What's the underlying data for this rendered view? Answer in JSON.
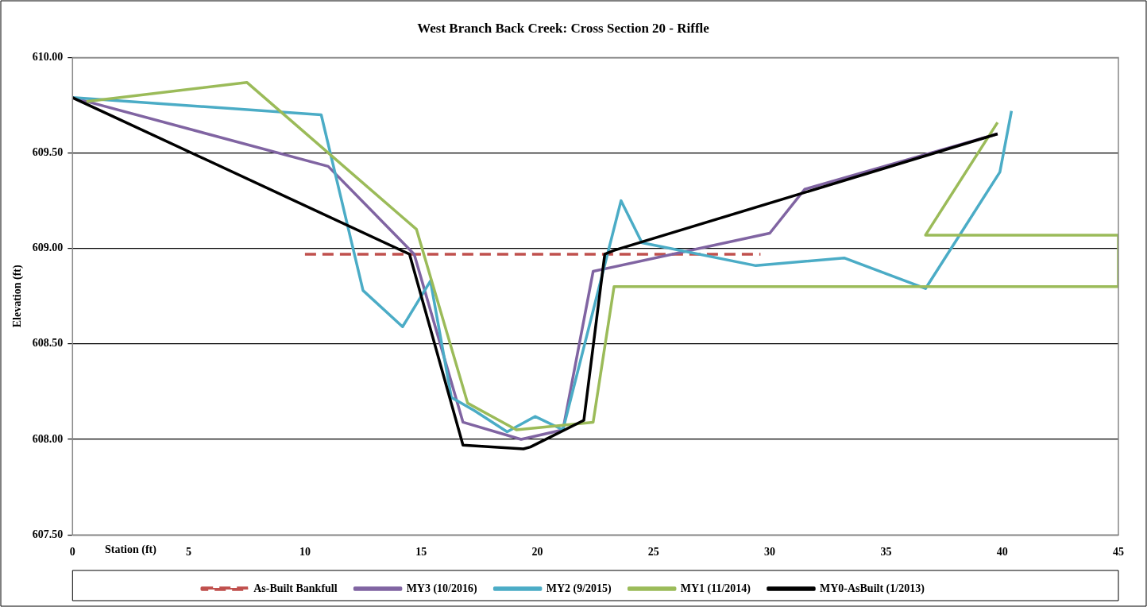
{
  "chart_data": {
    "type": "line",
    "title": "West Branch Back Creek: Cross Section 20 - Riffle",
    "xlabel": "Station (ft)",
    "ylabel": "Elevation (ft)",
    "xlim": [
      0,
      45
    ],
    "xticks": [
      0,
      5,
      10,
      15,
      20,
      25,
      30,
      35,
      40,
      45
    ],
    "ylim": [
      607.5,
      610
    ],
    "yticks": [
      {
        "value": 607.5,
        "label": "607.50"
      },
      {
        "value": 608,
        "label": "608.00"
      },
      {
        "value": 608.5,
        "label": "608.50"
      },
      {
        "value": 609,
        "label": "609.00"
      },
      {
        "value": 609.5,
        "label": "609.50"
      },
      {
        "value": 610,
        "label": "610.00"
      }
    ],
    "grid": "y",
    "legend": "bottom",
    "marker": "none",
    "series": [
      {
        "name": "As-Built Bankfull",
        "color": "#c0504d",
        "line_style": "dashed",
        "x": [
          10,
          29.6
        ],
        "values": [
          608.97,
          608.97
        ]
      },
      {
        "name": "MY3 (10/2016)",
        "color": "#8064a2",
        "x": [
          0,
          11.0,
          14.7,
          16.8,
          19.3,
          21.1,
          22.4,
          30.0,
          31.5,
          39.8
        ],
        "values": [
          609.79,
          609.43,
          608.97,
          608.09,
          608.0,
          608.05,
          608.88,
          609.08,
          609.31,
          609.6
        ]
      },
      {
        "name": "MY2 (9/2015)",
        "color": "#4bacc6",
        "x": [
          0,
          10.7,
          12.5,
          14.2,
          15.4,
          16.3,
          17.3,
          18.7,
          19.9,
          21.1,
          23.6,
          24.5,
          29.4,
          33.2,
          36.7,
          39.9,
          40.4
        ],
        "values": [
          609.79,
          609.7,
          608.78,
          608.59,
          608.83,
          608.22,
          608.15,
          608.04,
          608.12,
          608.05,
          609.25,
          609.03,
          608.91,
          608.95,
          608.79,
          609.4,
          609.72
        ]
      },
      {
        "name": "MY1 (11/2014)",
        "color": "#9bbb59",
        "x": [
          0.6,
          7.5,
          14.8,
          17.0,
          19.1,
          22.4,
          23.3,
          45,
          45,
          36.7,
          39.8
        ],
        "values": [
          609.77,
          609.87,
          609.1,
          608.19,
          608.05,
          608.09,
          608.8,
          608.8,
          609.07,
          609.07,
          609.66
        ]
      },
      {
        "name": "MY0-AsBuilt (1/2013)",
        "color": "#000000",
        "x": [
          0,
          14.5,
          16.8,
          19.4,
          19.7,
          22.0,
          22.9,
          23.3,
          39.8
        ],
        "values": [
          609.79,
          608.97,
          607.97,
          607.95,
          607.96,
          608.1,
          608.97,
          608.99,
          609.6
        ]
      }
    ]
  }
}
